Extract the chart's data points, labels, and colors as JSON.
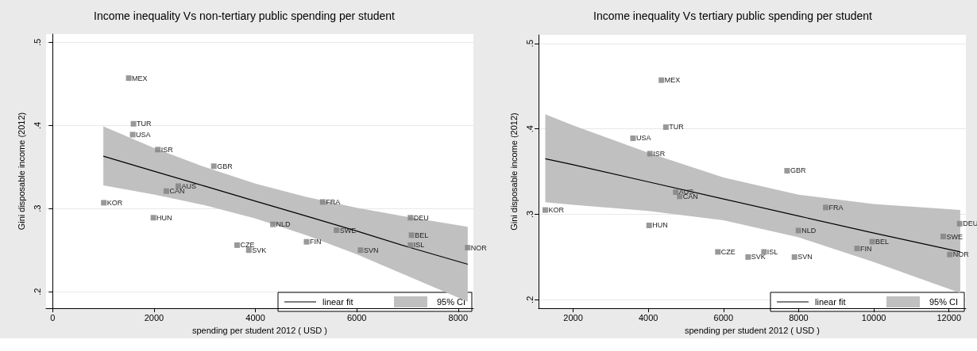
{
  "chart_data": [
    {
      "type": "scatter",
      "title": "Income inequality Vs non-tertiary public spending per student",
      "xlabel": "spending per student 2012 ( USD )",
      "ylabel": "Gini disposable income (2012)",
      "xlim": [
        -130,
        8300
      ],
      "xticks": [
        0,
        2000,
        4000,
        6000,
        8000
      ],
      "ylim": [
        0.18,
        0.51
      ],
      "yticks": [
        {
          "value": 0.2,
          "label": ".2"
        },
        {
          "value": 0.3,
          "label": ".3"
        },
        {
          "value": 0.4,
          "label": ".4"
        },
        {
          "value": 0.5,
          "label": ".5"
        }
      ],
      "grid": "y",
      "legend": "bottom right",
      "marker": "square",
      "series": [
        {
          "type": "scatter",
          "color": "#808080",
          "x": [
            1501,
            1595,
            1579,
            2075,
            3179,
            2478,
            2243,
            1009,
            1987,
            3639,
            5328,
            4345,
            5600,
            5009,
            3870,
            6075,
            7059,
            7080,
            7059,
            8188
          ],
          "values": [
            0.457,
            0.402,
            0.389,
            0.371,
            0.351,
            0.327,
            0.321,
            0.307,
            0.289,
            0.256,
            0.308,
            0.281,
            0.274,
            0.26,
            0.25,
            0.25,
            0.289,
            0.268,
            0.256,
            0.253
          ]
        },
        {
          "type": "line",
          "name": "linear fit",
          "marker": "none",
          "color": "#000000",
          "line_style": "solid",
          "x": [
            1000,
            2000,
            3000,
            4000,
            5000,
            6000,
            7000,
            8188
          ],
          "values": [
            0.363,
            0.345,
            0.327,
            0.309,
            0.291,
            0.273,
            0.254,
            0.233
          ],
          "lower": [
            0.328,
            0.317,
            0.304,
            0.288,
            0.268,
            0.245,
            0.219,
            0.188
          ],
          "upper": [
            0.399,
            0.373,
            0.35,
            0.33,
            0.314,
            0.301,
            0.29,
            0.278
          ]
        }
      ],
      "annotations": [
        "95% CI",
        {
          "text": "MEX",
          "x": 1501,
          "y": 0.457
        },
        {
          "text": "TUR",
          "x": 1595,
          "y": 0.402
        },
        {
          "text": "USA",
          "x": 1579,
          "y": 0.389
        },
        {
          "text": "ISR",
          "x": 2075,
          "y": 0.371
        },
        {
          "text": "GBR",
          "x": 3179,
          "y": 0.351
        },
        {
          "text": "AUS",
          "x": 2478,
          "y": 0.327
        },
        {
          "text": "CAN",
          "x": 2243,
          "y": 0.321
        },
        {
          "text": "KOR",
          "x": 1009,
          "y": 0.307
        },
        {
          "text": "HUN",
          "x": 1987,
          "y": 0.289
        },
        {
          "text": "CZE",
          "x": 3639,
          "y": 0.256
        },
        {
          "text": "FRA",
          "x": 5328,
          "y": 0.308
        },
        {
          "text": "NLD",
          "x": 4345,
          "y": 0.281
        },
        {
          "text": "SWE",
          "x": 5600,
          "y": 0.274
        },
        {
          "text": "FIN",
          "x": 5009,
          "y": 0.26
        },
        {
          "text": "SVK",
          "x": 3870,
          "y": 0.25
        },
        {
          "text": "SVN",
          "x": 6075,
          "y": 0.25
        },
        {
          "text": "DEU",
          "x": 7059,
          "y": 0.289
        },
        {
          "text": "BEL",
          "x": 7080,
          "y": 0.268
        },
        {
          "text": "ISL",
          "x": 7059,
          "y": 0.256
        },
        {
          "text": "NOR",
          "x": 8188,
          "y": 0.253
        }
      ]
    },
    {
      "type": "scatter",
      "title": "Income inequality Vs tertiary public spending per student",
      "xlabel": "spending per student 2012 ( USD )",
      "ylabel": "Gini disposable income (2012)",
      "xlim": [
        1080,
        12450
      ],
      "xticks": [
        2000,
        4000,
        6000,
        8000,
        10000,
        12000
      ],
      "ylim": [
        0.19,
        0.51
      ],
      "yticks": [
        {
          "value": 0.2,
          "label": ".2"
        },
        {
          "value": 0.3,
          "label": ".3"
        },
        {
          "value": 0.4,
          "label": ".4"
        },
        {
          "value": 0.5,
          "label": ".5"
        }
      ],
      "grid": "y",
      "legend": "bottom right",
      "marker": "square",
      "series": [
        {
          "type": "scatter",
          "color": "#808080",
          "x": [
            4349,
            4468,
            3594,
            4044,
            4730,
            4836,
            1259,
            4023,
            5852,
            7693,
            8722,
            7996,
            11848,
            12286,
            9958,
            9556,
            12023,
            7079,
            6656,
            7890
          ],
          "values": [
            0.457,
            0.402,
            0.389,
            0.371,
            0.326,
            0.321,
            0.305,
            0.287,
            0.256,
            0.351,
            0.308,
            0.281,
            0.274,
            0.289,
            0.268,
            0.26,
            0.253,
            0.256,
            0.25,
            0.25
          ]
        },
        {
          "type": "line",
          "name": "linear fit",
          "marker": "none",
          "color": "#000000",
          "line_style": "solid",
          "x": [
            1259,
            2000,
            4000,
            6000,
            8000,
            10000,
            12300
          ],
          "values": [
            0.365,
            0.358,
            0.338,
            0.318,
            0.298,
            0.278,
            0.256
          ],
          "lower": [
            0.314,
            0.311,
            0.304,
            0.293,
            0.273,
            0.244,
            0.208
          ],
          "upper": [
            0.417,
            0.404,
            0.372,
            0.343,
            0.323,
            0.312,
            0.305
          ]
        }
      ],
      "annotations": [
        "95% CI",
        {
          "text": "MEX",
          "x": 4349,
          "y": 0.457
        },
        {
          "text": "TUR",
          "x": 4468,
          "y": 0.402
        },
        {
          "text": "USA",
          "x": 3594,
          "y": 0.389
        },
        {
          "text": "ISR",
          "x": 4044,
          "y": 0.371
        },
        {
          "text": "AUS",
          "x": 4730,
          "y": 0.326
        },
        {
          "text": "CAN",
          "x": 4836,
          "y": 0.321
        },
        {
          "text": "KOR",
          "x": 1259,
          "y": 0.305
        },
        {
          "text": "HUN",
          "x": 4023,
          "y": 0.287
        },
        {
          "text": "CZE",
          "x": 5852,
          "y": 0.256
        },
        {
          "text": "GBR",
          "x": 7693,
          "y": 0.351
        },
        {
          "text": "FRA",
          "x": 8722,
          "y": 0.308
        },
        {
          "text": "NLD",
          "x": 7996,
          "y": 0.281
        },
        {
          "text": "SWE",
          "x": 11848,
          "y": 0.274
        },
        {
          "text": "DEU",
          "x": 12286,
          "y": 0.289
        },
        {
          "text": "BEL",
          "x": 9958,
          "y": 0.268
        },
        {
          "text": "FIN",
          "x": 9556,
          "y": 0.26
        },
        {
          "text": "NOR",
          "x": 12023,
          "y": 0.253
        },
        {
          "text": "ISL",
          "x": 7079,
          "y": 0.256
        },
        {
          "text": "SVK",
          "x": 6656,
          "y": 0.25
        },
        {
          "text": "SVN",
          "x": 7890,
          "y": 0.25
        }
      ]
    }
  ]
}
